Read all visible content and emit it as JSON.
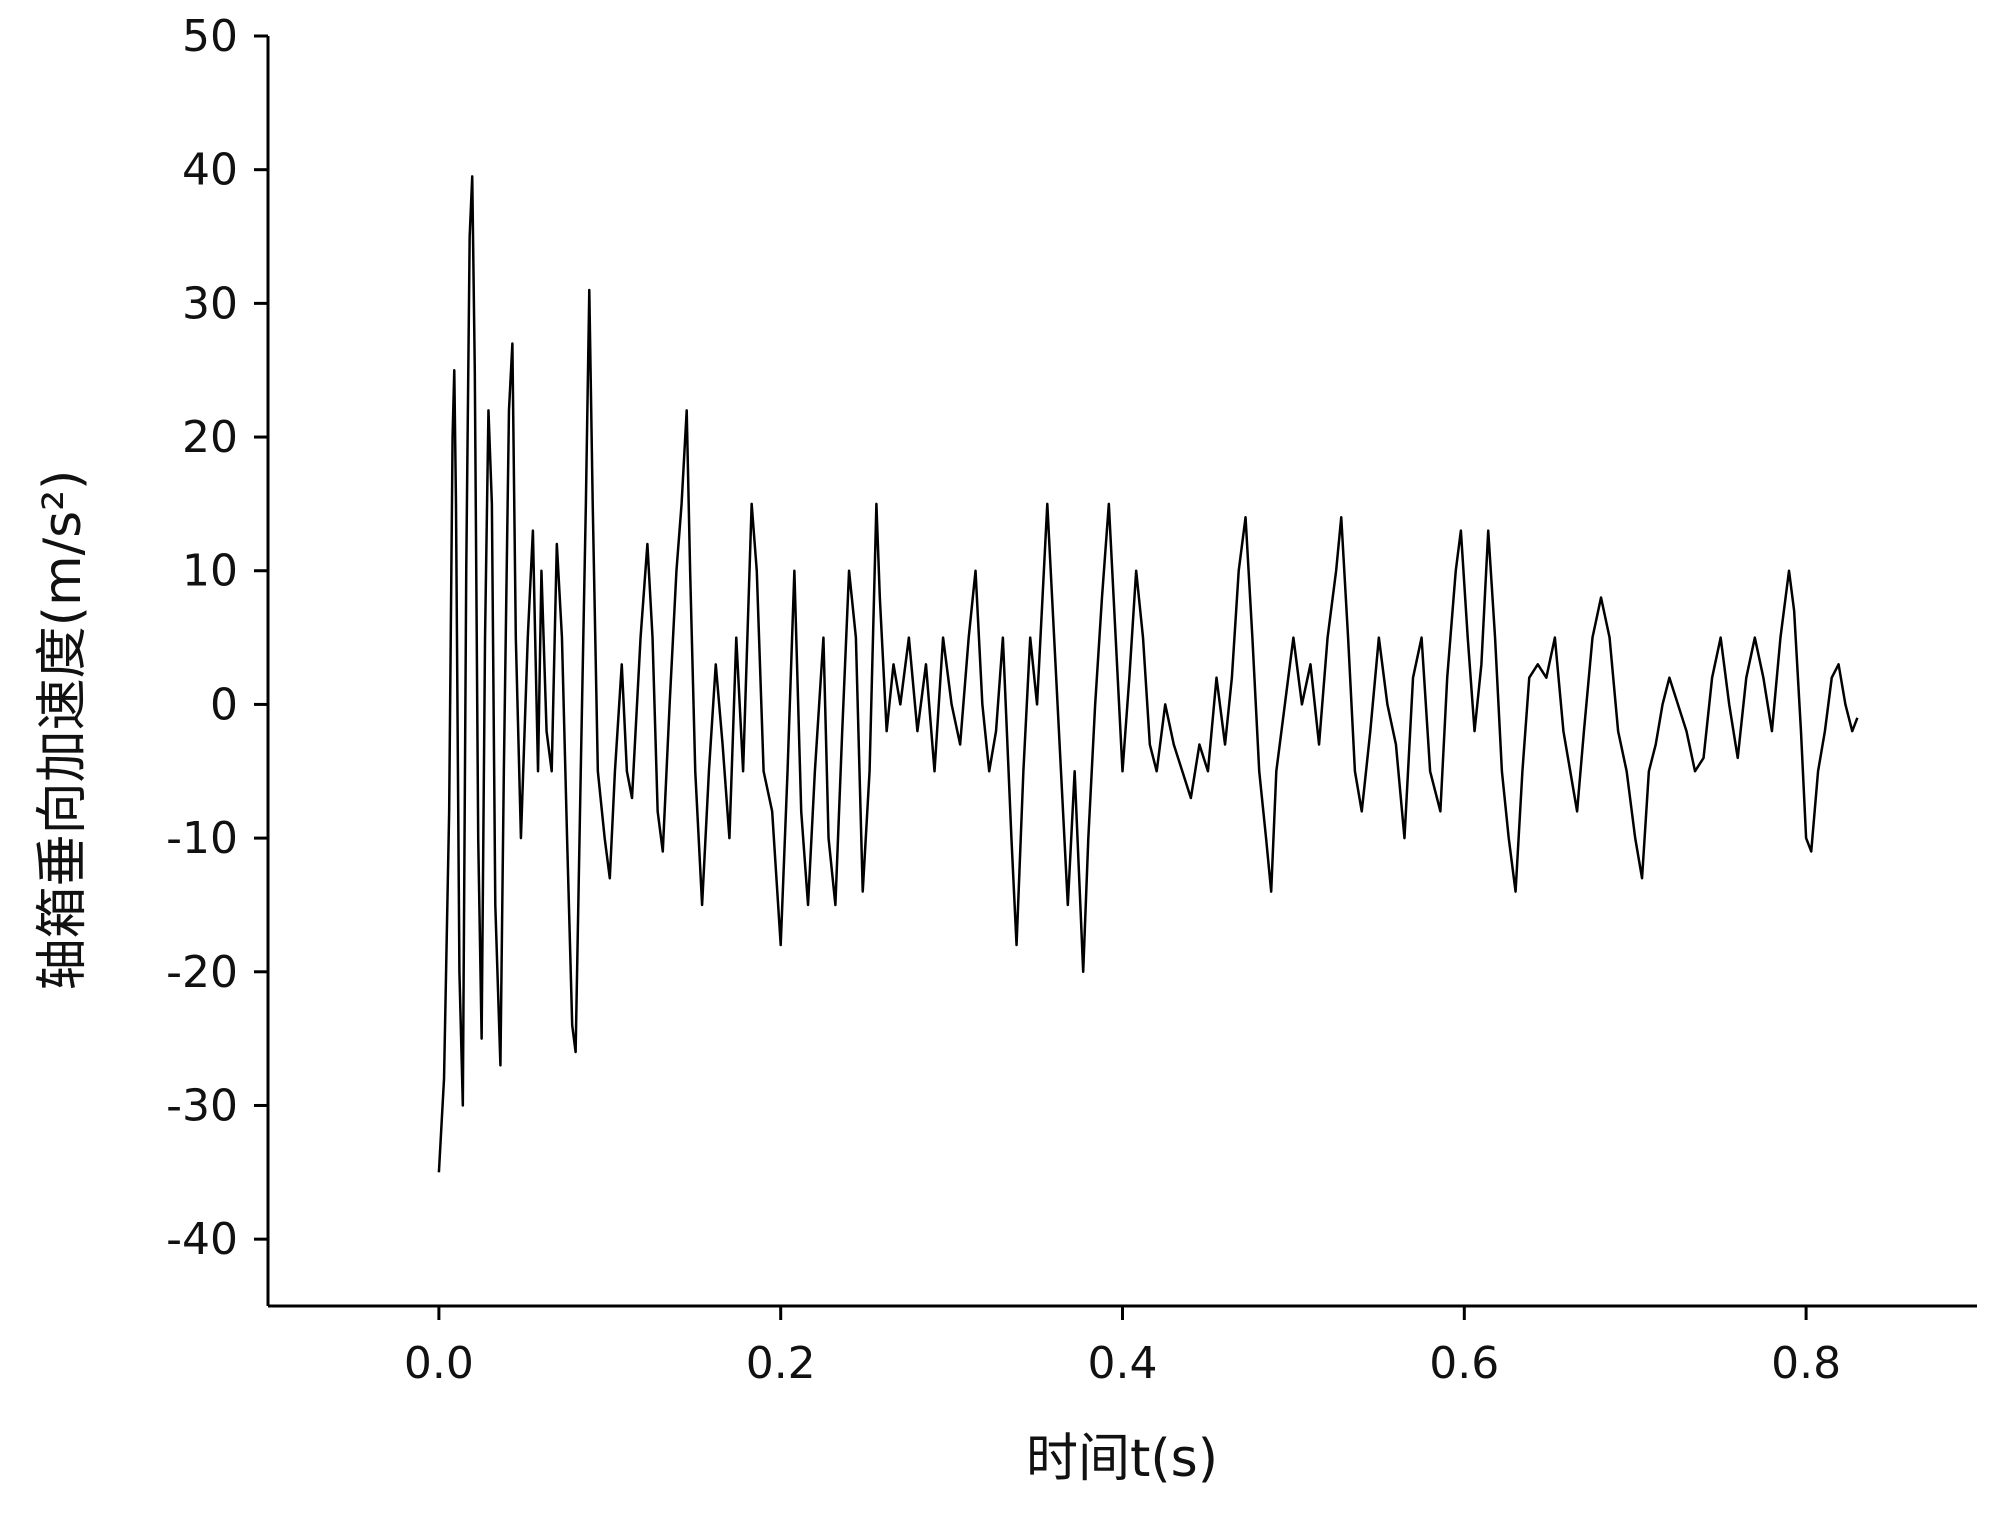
{
  "chart_data": {
    "type": "line",
    "x_label": "时间t(s)",
    "y_label": "轴箱垂向加速度(m/s²)",
    "xlim": [
      -0.1,
      0.9
    ],
    "ylim": [
      -45,
      50
    ],
    "xticks": [
      {
        "value": 0,
        "label": "0.0"
      },
      0.2,
      0.4,
      0.6,
      0.8
    ],
    "yticks": [
      -40,
      -30,
      -20,
      -10,
      0,
      10,
      20,
      30,
      40,
      50
    ],
    "series": [
      {
        "color": "#000000",
        "x": [
          0,
          0.003,
          0.006,
          0.008,
          0.009,
          0.01,
          0.012,
          0.014,
          0.016,
          0.018,
          0.0195,
          0.021,
          0.023,
          0.025,
          0.027,
          0.029,
          0.031,
          0.033,
          0.036,
          0.038,
          0.041,
          0.043,
          0.045,
          0.048,
          0.052,
          0.055,
          0.058,
          0.06,
          0.063,
          0.066,
          0.069,
          0.072,
          0.075,
          0.078,
          0.08,
          0.083,
          0.086,
          0.088,
          0.09,
          0.093,
          0.097,
          0.1,
          0.103,
          0.107,
          0.11,
          0.113,
          0.118,
          0.122,
          0.125,
          0.128,
          0.131,
          0.135,
          0.139,
          0.142,
          0.145,
          0.147,
          0.15,
          0.154,
          0.158,
          0.162,
          0.166,
          0.17,
          0.174,
          0.178,
          0.183,
          0.186,
          0.19,
          0.195,
          0.2,
          0.204,
          0.208,
          0.212,
          0.216,
          0.22,
          0.225,
          0.228,
          0.232,
          0.236,
          0.24,
          0.244,
          0.248,
          0.252,
          0.256,
          0.258,
          0.262,
          0.266,
          0.27,
          0.275,
          0.28,
          0.285,
          0.29,
          0.295,
          0.3,
          0.305,
          0.31,
          0.314,
          0.318,
          0.322,
          0.326,
          0.33,
          0.335,
          0.338,
          0.342,
          0.346,
          0.35,
          0.354,
          0.356,
          0.36,
          0.364,
          0.368,
          0.372,
          0.377,
          0.38,
          0.384,
          0.388,
          0.392,
          0.396,
          0.4,
          0.404,
          0.408,
          0.412,
          0.416,
          0.42,
          0.425,
          0.43,
          0.435,
          0.44,
          0.445,
          0.45,
          0.455,
          0.46,
          0.464,
          0.468,
          0.472,
          0.476,
          0.48,
          0.484,
          0.487,
          0.49,
          0.495,
          0.5,
          0.505,
          0.51,
          0.515,
          0.52,
          0.525,
          0.528,
          0.532,
          0.536,
          0.54,
          0.545,
          0.55,
          0.555,
          0.56,
          0.565,
          0.57,
          0.575,
          0.58,
          0.586,
          0.59,
          0.595,
          0.598,
          0.602,
          0.606,
          0.61,
          0.614,
          0.618,
          0.622,
          0.626,
          0.63,
          0.634,
          0.638,
          0.643,
          0.648,
          0.653,
          0.658,
          0.662,
          0.666,
          0.67,
          0.675,
          0.68,
          0.685,
          0.69,
          0.695,
          0.7,
          0.704,
          0.708,
          0.712,
          0.716,
          0.72,
          0.725,
          0.73,
          0.735,
          0.74,
          0.745,
          0.75,
          0.755,
          0.76,
          0.765,
          0.77,
          0.775,
          0.78,
          0.785,
          0.79,
          0.793,
          0.797,
          0.8,
          0.803,
          0.807,
          0.811,
          0.815,
          0.819,
          0.823,
          0.827,
          0.83
        ],
        "values": [
          -35,
          -28,
          -8,
          20,
          25,
          15,
          -20,
          -30,
          10,
          35,
          39.5,
          25,
          -10,
          -25,
          5,
          22,
          15,
          -15,
          -27,
          -5,
          22,
          27,
          5,
          -10,
          5,
          13,
          -5,
          10,
          -2,
          -5,
          12,
          5,
          -10,
          -24,
          -26,
          -5,
          15,
          31,
          15,
          -5,
          -10,
          -13,
          -5,
          3,
          -5,
          -7,
          5,
          12,
          5,
          -8,
          -11,
          0,
          10,
          15,
          22,
          10,
          -5,
          -15,
          -5,
          3,
          -3,
          -10,
          5,
          -5,
          15,
          10,
          -5,
          -8,
          -18,
          -5,
          10,
          -8,
          -15,
          -5,
          5,
          -10,
          -15,
          -2,
          10,
          5,
          -14,
          -5,
          15,
          8,
          -2,
          3,
          0,
          5,
          -2,
          3,
          -5,
          5,
          0,
          -3,
          5,
          10,
          0,
          -5,
          -2,
          5,
          -10,
          -18,
          -5,
          5,
          0,
          10,
          15,
          5,
          -5,
          -15,
          -5,
          -20,
          -10,
          0,
          8,
          15,
          5,
          -5,
          2,
          10,
          5,
          -3,
          -5,
          0,
          -3,
          -5,
          -7,
          -3,
          -5,
          2,
          -3,
          2,
          10,
          14,
          5,
          -5,
          -10,
          -14,
          -5,
          0,
          5,
          0,
          3,
          -3,
          5,
          10,
          14,
          5,
          -5,
          -8,
          -2,
          5,
          0,
          -3,
          -10,
          2,
          5,
          -5,
          -8,
          2,
          10,
          13,
          5,
          -2,
          3,
          13,
          5,
          -5,
          -10,
          -14,
          -5,
          2,
          3,
          2,
          5,
          -2,
          -5,
          -8,
          -2,
          5,
          8,
          5,
          -2,
          -5,
          -10,
          -13,
          -5,
          -3,
          0,
          2,
          0,
          -2,
          -5,
          -4,
          2,
          5,
          0,
          -4,
          2,
          5,
          2,
          -2,
          5,
          10,
          7,
          -2,
          -10,
          -11,
          -5,
          -2,
          2,
          3,
          0,
          -2,
          -1
        ]
      }
    ]
  }
}
